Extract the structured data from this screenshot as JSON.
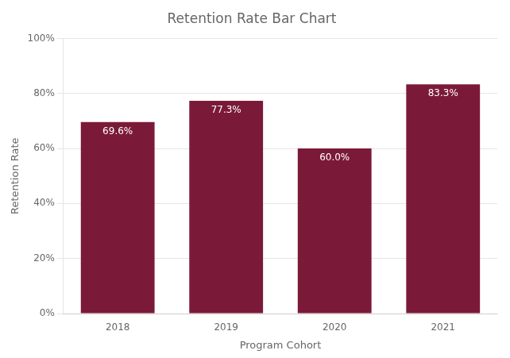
{
  "chart_data": {
    "type": "bar",
    "title": "Retention Rate Bar Chart",
    "x_label": "Program Cohort",
    "y_label": "Retention Rate",
    "categories": [
      "2018",
      "2019",
      "2020",
      "2021"
    ],
    "values": [
      69.6,
      77.3,
      60.0,
      83.3
    ],
    "value_labels": [
      "69.6%",
      "77.3%",
      "60.0%",
      "83.3%"
    ],
    "data_labels": true,
    "color": "#7B1A38",
    "ylim": [
      0,
      100
    ],
    "yticks": [
      {
        "value": 0,
        "label": "0%"
      },
      {
        "value": 20,
        "label": "20%"
      },
      {
        "value": 40,
        "label": "40%"
      },
      {
        "value": 60,
        "label": "60%"
      },
      {
        "value": 80,
        "label": "80%"
      },
      {
        "value": 100,
        "label": "100%"
      }
    ],
    "grid": true
  }
}
